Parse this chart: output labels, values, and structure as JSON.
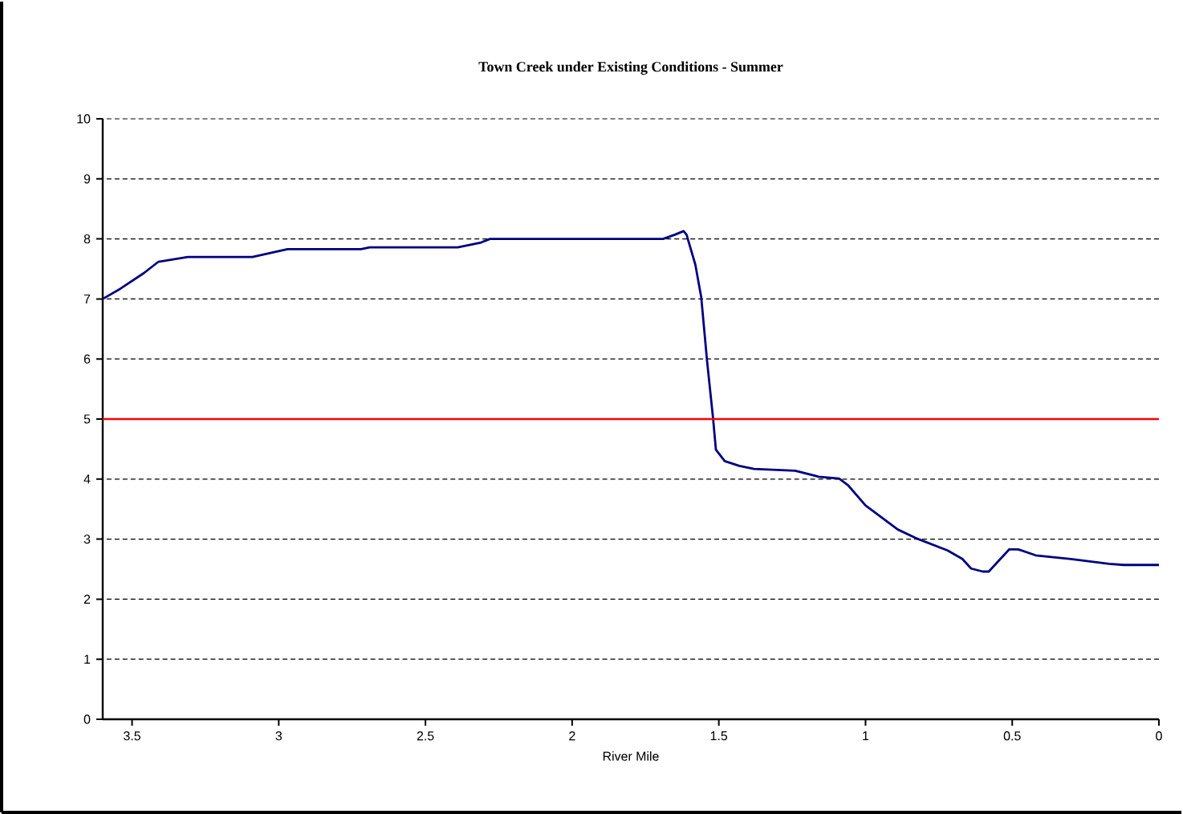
{
  "chart_data": {
    "type": "line",
    "title": "Town Creek under Existing Conditions - Summer",
    "xlabel": "River Mile",
    "series": [
      {
        "color": "#000080",
        "x": [
          3.6,
          3.54,
          3.46,
          3.41,
          3.31,
          3.09,
          2.97,
          2.72,
          2.69,
          2.39,
          2.31,
          2.28,
          1.69,
          1.65,
          1.62,
          1.61,
          1.58,
          1.56,
          1.54,
          1.52,
          1.51,
          1.48,
          1.43,
          1.38,
          1.24,
          1.16,
          1.09,
          1.06,
          1.0,
          0.89,
          0.83,
          0.72,
          0.67,
          0.64,
          0.6,
          0.58,
          0.51,
          0.48,
          0.42,
          0.3,
          0.17,
          0.12,
          0
        ],
        "values": [
          7.0,
          7.17,
          7.43,
          7.62,
          7.7,
          7.7,
          7.83,
          7.83,
          7.86,
          7.86,
          7.94,
          8.0,
          8.0,
          8.07,
          8.13,
          8.07,
          7.57,
          7.03,
          5.96,
          5.03,
          4.49,
          4.3,
          4.22,
          4.17,
          4.14,
          4.04,
          4.01,
          3.9,
          3.56,
          3.16,
          3.02,
          2.81,
          2.67,
          2.51,
          2.46,
          2.46,
          2.83,
          2.83,
          2.73,
          2.67,
          2.59,
          2.57,
          2.57
        ]
      }
    ],
    "xlim": [
      3.6,
      0
    ],
    "xticks": [
      3.5,
      3,
      2.5,
      2,
      1.5,
      1,
      0.5,
      0
    ],
    "ylim": [
      0,
      10
    ],
    "yticks": [
      0,
      1,
      2,
      3,
      4,
      5,
      6,
      7,
      8,
      9,
      10
    ],
    "grid": "y",
    "marker": "none",
    "line_style": "solid",
    "ref_lines": [
      {
        "axis": "y",
        "value": 5,
        "color": "#ff0000"
      }
    ]
  }
}
